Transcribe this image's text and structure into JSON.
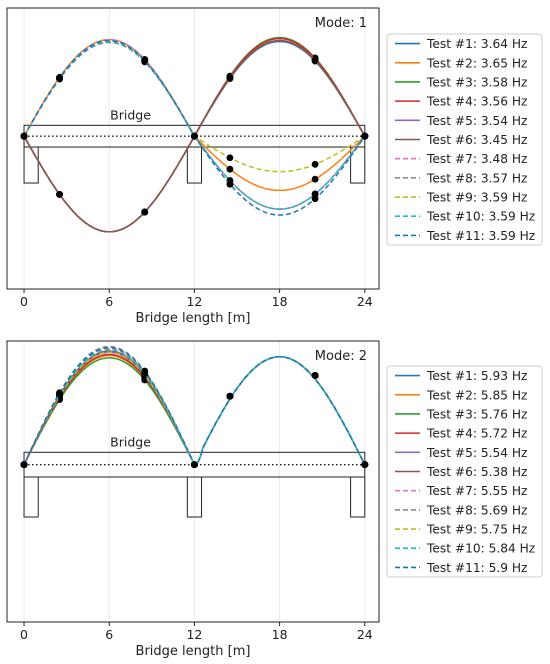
{
  "chart_data": [
    {
      "type": "line",
      "mode_label": "Mode: 1",
      "xlabel": "Bridge length [m]",
      "ylabel": "",
      "xlim": [
        -1.2,
        25.0
      ],
      "ylim": [
        -1.55,
        1.3
      ],
      "xticks": [
        "0",
        "6",
        "12",
        "18",
        "24"
      ],
      "xtick_values": [
        0,
        6,
        12,
        18,
        24
      ],
      "grid": "vertical",
      "legend": "outside-right",
      "bridge_label": "Bridge",
      "sensor_x": [
        0,
        2.5,
        8.5,
        12,
        14.5,
        20.5,
        24
      ],
      "span1_min_amp": 0.93,
      "span1_max_amp": 1.0,
      "span2_amp": [
        0.96,
        0.98,
        1.0,
        0.99,
        0.97,
        0.97,
        0.98,
        0.95,
        0.97,
        0.96,
        0.97
      ],
      "series": [
        {
          "name": "Test #1: 3.64 Hz",
          "color": "#1f77b4",
          "dash": "solid",
          "sign": -1,
          "span2_low": 0.68
        },
        {
          "name": "Test #2: 3.65 Hz",
          "color": "#ff7f0e",
          "dash": "solid",
          "sign": 1,
          "span2_low": 0.55
        },
        {
          "name": "Test #3: 3.58 Hz",
          "color": "#2ca02c",
          "dash": "solid",
          "sign": -1,
          "span2_low": 0.74
        },
        {
          "name": "Test #4: 3.56 Hz",
          "color": "#d62728",
          "dash": "solid",
          "sign": -1,
          "span2_low": 0.74
        },
        {
          "name": "Test #5: 3.54 Hz",
          "color": "#9467bd",
          "dash": "solid",
          "sign": -1,
          "span2_low": 0.74
        },
        {
          "name": "Test #6: 3.45 Hz",
          "color": "#8c564b",
          "dash": "solid",
          "sign": -1,
          "span2_low": 0.74
        },
        {
          "name": "Test #7: 3.48 Hz",
          "color": "#e377c2",
          "dash": "dashed",
          "sign": 1,
          "span2_low": 0.74
        },
        {
          "name": "Test #8: 3.57 Hz",
          "color": "#7f7f7f",
          "dash": "dashed",
          "sign": 1,
          "span2_low": 0.74
        },
        {
          "name": "Test #9: 3.59 Hz",
          "color": "#bcbd22",
          "dash": "dashed",
          "sign": 1,
          "span2_low": 0.36
        },
        {
          "name": "Test #10: 3.59 Hz",
          "color": "#17becf",
          "dash": "dashed",
          "sign": 1,
          "span2_low": 0.74
        },
        {
          "name": "Test #11: 3.59 Hz",
          "color": "#1f77b4",
          "dash": "dashed",
          "sign": 1,
          "span2_low": 0.8
        }
      ]
    },
    {
      "type": "line",
      "mode_label": "Mode: 2",
      "xlabel": "Bridge length [m]",
      "ylabel": "",
      "xlim": [
        -1.2,
        25.0
      ],
      "ylim": [
        -1.4,
        1.1
      ],
      "xticks": [
        "0",
        "6",
        "12",
        "18",
        "24"
      ],
      "xtick_values": [
        0,
        6,
        12,
        18,
        24
      ],
      "grid": "vertical",
      "legend": "outside-right",
      "bridge_label": "Bridge",
      "sensor_x": [
        0,
        2.5,
        8.5,
        12,
        14.5,
        20.5,
        24
      ],
      "series": [
        {
          "name": "Test #1: 5.93 Hz",
          "color": "#1f77b4",
          "dash": "solid",
          "amp1": 1.0
        },
        {
          "name": "Test #2: 5.85 Hz",
          "color": "#ff7f0e",
          "dash": "solid",
          "amp1": 0.97
        },
        {
          "name": "Test #3: 5.76 Hz",
          "color": "#2ca02c",
          "dash": "solid",
          "amp1": 0.95
        },
        {
          "name": "Test #4: 5.72 Hz",
          "color": "#d62728",
          "dash": "solid",
          "amp1": 0.98
        },
        {
          "name": "Test #5: 5.54 Hz",
          "color": "#9467bd",
          "dash": "solid",
          "amp1": 1.0
        },
        {
          "name": "Test #6: 5.38 Hz",
          "color": "#8c564b",
          "dash": "solid",
          "amp1": 1.01
        },
        {
          "name": "Test #7: 5.55 Hz",
          "color": "#e377c2",
          "dash": "dashed",
          "amp1": 1.03
        },
        {
          "name": "Test #8: 5.69 Hz",
          "color": "#7f7f7f",
          "dash": "dashed",
          "amp1": 1.05
        },
        {
          "name": "Test #9: 5.75 Hz",
          "color": "#bcbd22",
          "dash": "dashed",
          "amp1": 1.0
        },
        {
          "name": "Test #10: 5.84 Hz",
          "color": "#17becf",
          "dash": "dashed",
          "amp1": 1.02
        },
        {
          "name": "Test #11: 5.9 Hz",
          "color": "#1f77b4",
          "dash": "dashed",
          "amp1": 1.04
        }
      ]
    }
  ]
}
